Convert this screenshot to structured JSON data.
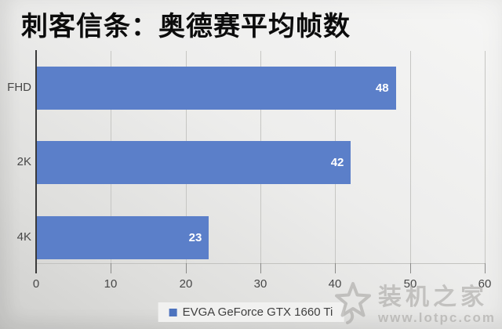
{
  "chart_data": {
    "type": "bar",
    "orientation": "horizontal",
    "title": "刺客信条：奥德赛平均帧数",
    "categories": [
      "FHD",
      "2K",
      "4K"
    ],
    "values": [
      48,
      42,
      23
    ],
    "series": [
      {
        "name": "EVGA GeForce GTX 1660 Ti",
        "values": [
          48,
          42,
          23
        ]
      }
    ],
    "xlabel": "",
    "ylabel": "",
    "xlim": [
      0,
      60
    ],
    "xticks": [
      0,
      10,
      20,
      30,
      40,
      50,
      60
    ],
    "grid": "vertical",
    "legend_position": "bottom-center",
    "bar_color": "#5b7fc9",
    "legend_marker_color": "#4d73be",
    "value_label_color": "#ffffff"
  },
  "watermark": {
    "star_icon": "star-outline-icon",
    "site_name": "装机之家",
    "site_url": "www.lotpc.com"
  }
}
